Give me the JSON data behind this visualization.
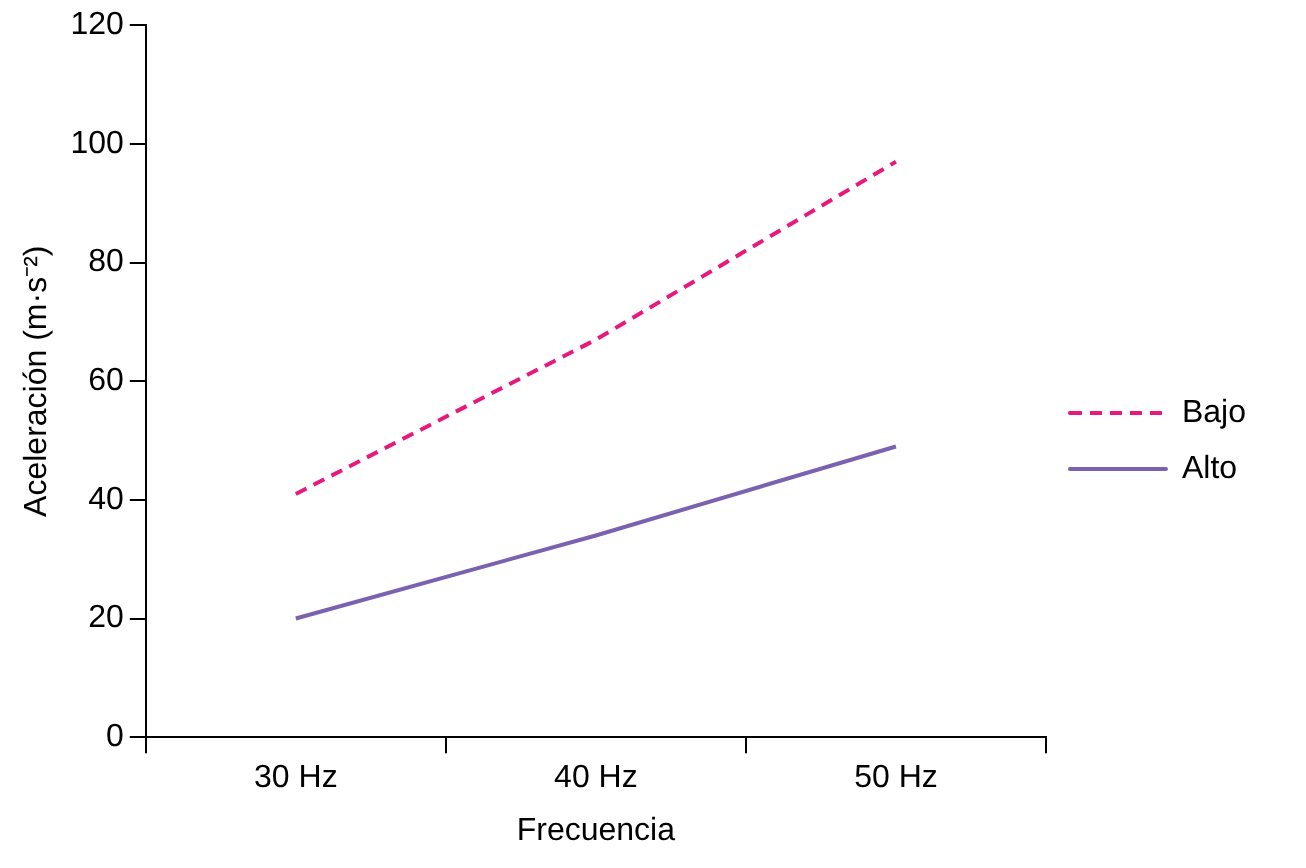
{
  "chart_data": {
    "type": "line",
    "xlabel": "Frecuencia",
    "ylabel": "Aceleración (m·s⁻²)",
    "categories": [
      "30 Hz",
      "40 Hz",
      "50 Hz"
    ],
    "series": [
      {
        "name": "Bajo",
        "color": "#e8187c",
        "values": [
          41,
          67,
          97
        ],
        "line_style": "dashed"
      },
      {
        "name": "Alto",
        "color": "#7b62b0",
        "values": [
          20,
          34,
          49
        ],
        "line_style": "solid"
      }
    ],
    "ylim": [
      0,
      120
    ],
    "yticks": [
      0,
      20,
      40,
      60,
      80,
      100,
      120
    ],
    "grid": false,
    "legend": "right",
    "marker": "none"
  }
}
